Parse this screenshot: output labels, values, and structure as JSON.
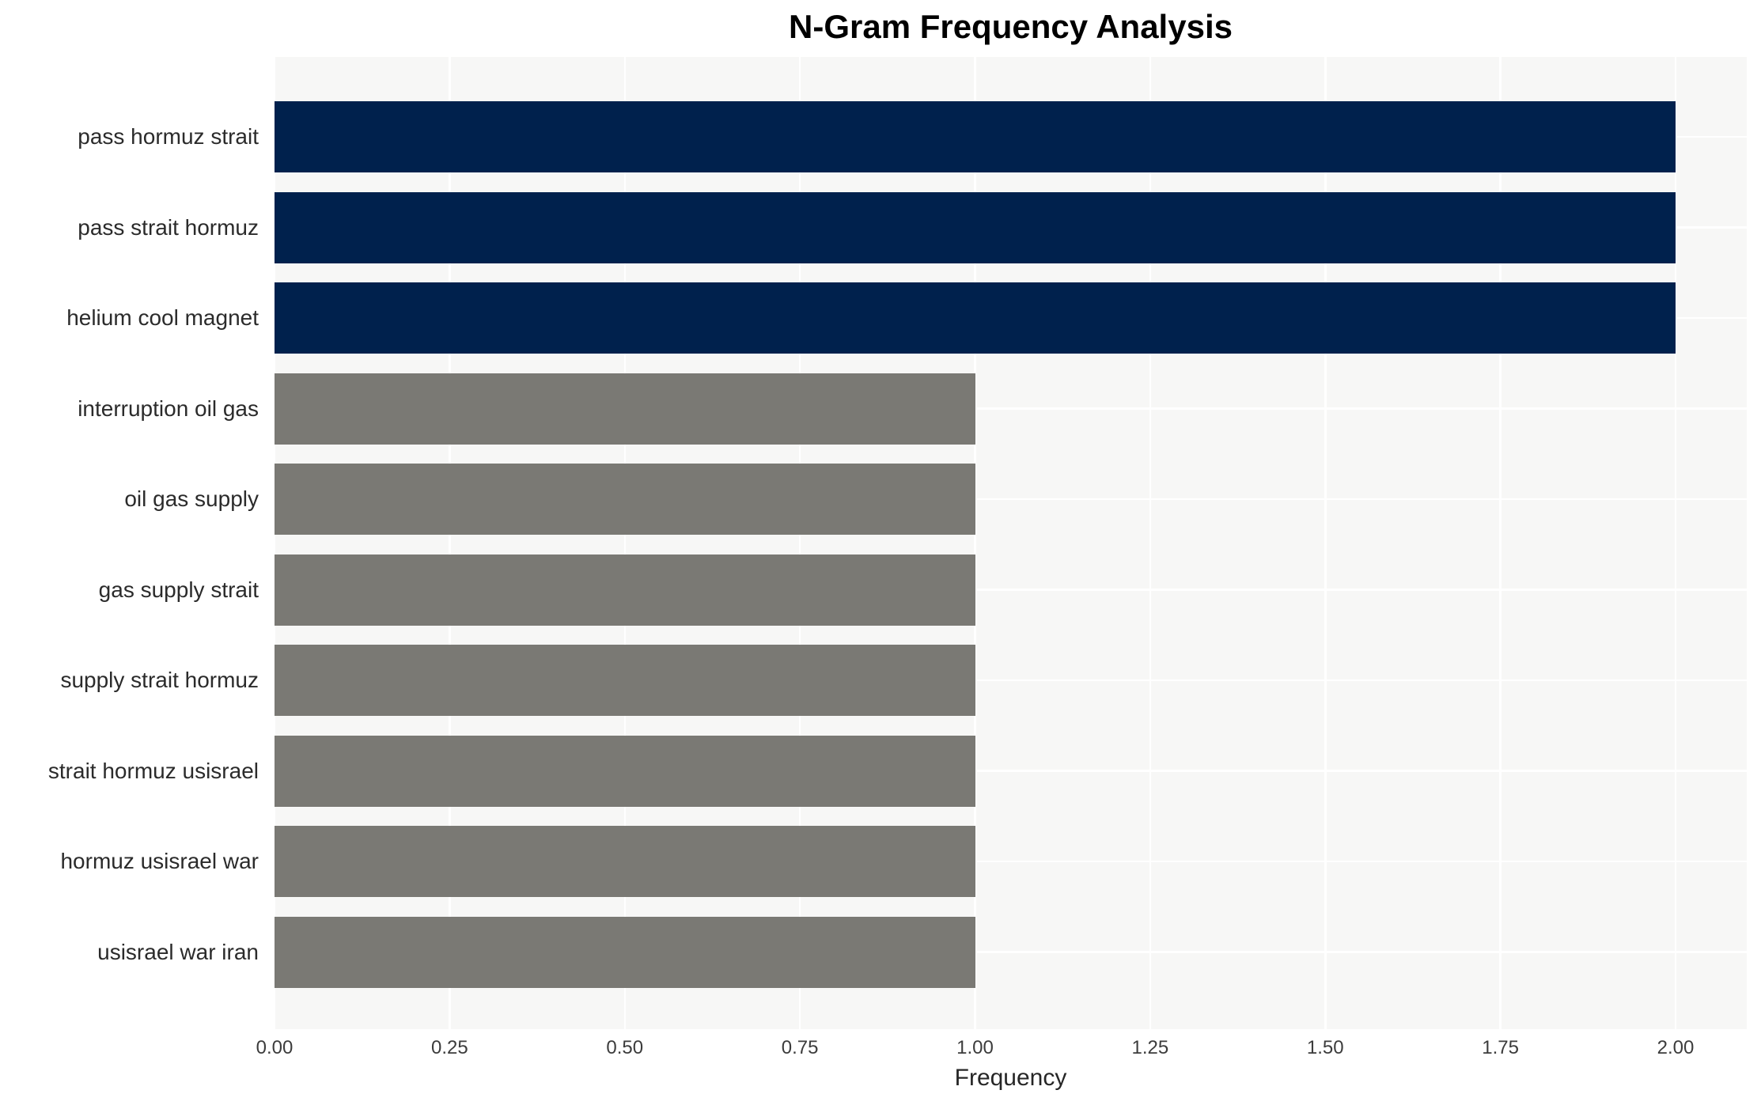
{
  "title": "N-Gram Frequency Analysis",
  "axis": {
    "xlabel": "Frequency"
  },
  "colors": {
    "highlight_bar": "#00214d",
    "default_bar": "#7a7974",
    "plot_background": "#f7f7f6",
    "gridline": "#ffffff",
    "title_text": "#000000",
    "tick_text": "#3c3c3c",
    "category_text": "#2b2b2b"
  },
  "chart_data": {
    "type": "bar",
    "orientation": "horizontal",
    "title": "N-Gram Frequency Analysis",
    "xlabel": "Frequency",
    "ylabel": "",
    "categories": [
      "pass hormuz strait",
      "pass strait hormuz",
      "helium cool magnet",
      "interruption oil gas",
      "oil gas supply",
      "gas supply strait",
      "supply strait hormuz",
      "strait hormuz usisrael",
      "hormuz usisrael war",
      "usisrael war iran"
    ],
    "values": [
      2,
      2,
      2,
      1,
      1,
      1,
      1,
      1,
      1,
      1
    ],
    "bar_colors": [
      "#00214d",
      "#00214d",
      "#00214d",
      "#7a7974",
      "#7a7974",
      "#7a7974",
      "#7a7974",
      "#7a7974",
      "#7a7974",
      "#7a7974"
    ],
    "xlim": [
      0,
      2.1
    ],
    "xticks": [
      0,
      0.25,
      0.5,
      0.75,
      1.0,
      1.25,
      1.5,
      1.75,
      2.0
    ],
    "xtick_labels": [
      "0.00",
      "0.25",
      "0.50",
      "0.75",
      "1.00",
      "1.25",
      "1.50",
      "1.75",
      "2.00"
    ],
    "grid": true,
    "gridlines": "white-on-lightgray, vertical at xticks, horizontal at category centers",
    "legend": "none"
  }
}
